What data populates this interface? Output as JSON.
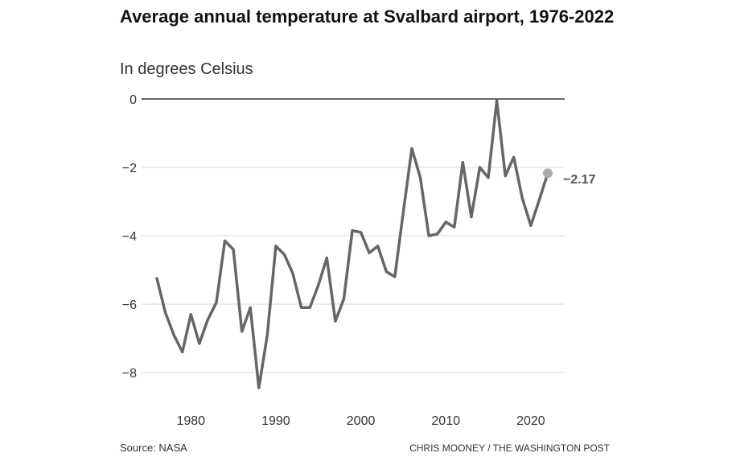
{
  "title": "Average annual temperature at Svalbard airport, 1976-2022",
  "subtitle": "In degrees Celsius",
  "source": "Source: NASA",
  "credit": "CHRIS MOONEY / THE WASHINGTON POST",
  "colors": {
    "line": "#666666",
    "grid": "#d9d9d9",
    "zero_line": "#333333",
    "end_dot": "#aaaaaa"
  },
  "chart_data": {
    "type": "line",
    "title": "Average annual temperature at Svalbard airport, 1976-2022",
    "subtitle": "In degrees Celsius",
    "xlabel": "",
    "ylabel": "",
    "xlim": [
      1975,
      2024
    ],
    "ylim": [
      -8.5,
      0
    ],
    "y_ticks": [
      0,
      -2,
      -4,
      -6,
      -8
    ],
    "x_ticks": [
      1980,
      1990,
      2000,
      2010,
      2020
    ],
    "grid": true,
    "legend": "none",
    "end_label": "−2.17",
    "x": [
      1976,
      1977,
      1978,
      1979,
      1980,
      1981,
      1982,
      1983,
      1984,
      1985,
      1986,
      1987,
      1988,
      1989,
      1990,
      1991,
      1992,
      1993,
      1994,
      1995,
      1996,
      1997,
      1998,
      1999,
      2000,
      2001,
      2002,
      2003,
      2004,
      2005,
      2006,
      2007,
      2008,
      2009,
      2010,
      2011,
      2012,
      2013,
      2014,
      2015,
      2016,
      2017,
      2018,
      2019,
      2020,
      2021,
      2022
    ],
    "series": [
      {
        "values": [
          -5.25,
          -6.25,
          -6.9,
          -7.4,
          -6.3,
          -7.15,
          -6.45,
          -5.95,
          -4.15,
          -4.4,
          -6.8,
          -6.1,
          -8.45,
          -6.9,
          -4.3,
          -4.55,
          -5.1,
          -6.1,
          -6.1,
          -5.45,
          -4.65,
          -6.5,
          -5.85,
          -3.85,
          -3.9,
          -4.5,
          -4.3,
          -5.05,
          -5.2,
          -3.3,
          -1.45,
          -2.3,
          -4.0,
          -3.95,
          -3.6,
          -3.75,
          -1.85,
          -3.45,
          -2.0,
          -2.3,
          -0.05,
          -2.25,
          -1.7,
          -2.9,
          -3.7,
          -2.95,
          -2.17
        ]
      }
    ]
  }
}
